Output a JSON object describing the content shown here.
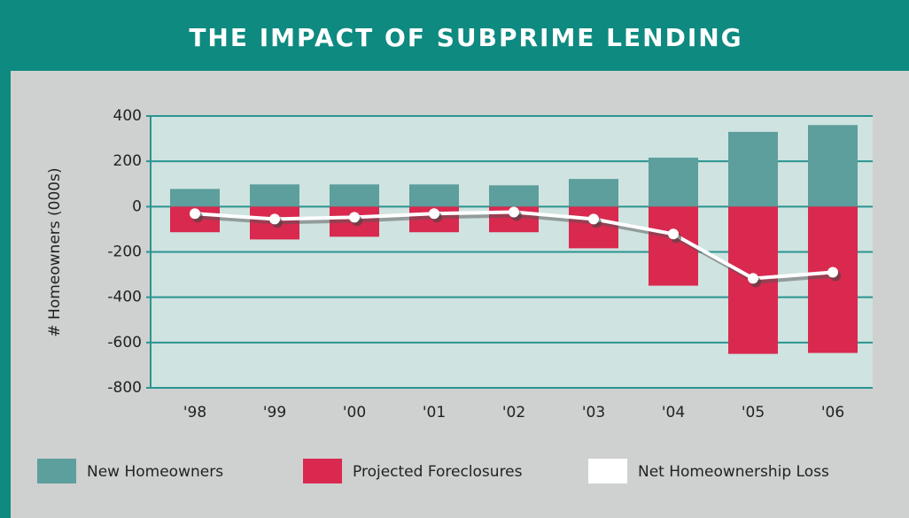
{
  "chart_data": {
    "type": "bar",
    "title": "THE IMPACT OF SUBPRIME LENDING",
    "y_label": "# Homeowners (000s)",
    "categories": [
      "'98",
      "'99",
      "'00",
      "'01",
      "'02",
      "'03",
      "'04",
      "'05",
      "'06"
    ],
    "series": [
      {
        "name": "New Homeowners",
        "color": "#5c9f9c",
        "type": "bar",
        "values": [
          78,
          98,
          98,
          98,
          94,
          122,
          216,
          330,
          360
        ]
      },
      {
        "name": "Projected Foreclosures",
        "color": "#d9294f",
        "type": "bar",
        "values": [
          -113,
          -145,
          -133,
          -113,
          -113,
          -184,
          -349,
          -650,
          -646
        ]
      },
      {
        "name": "Net Homeownership Loss",
        "color": "#ffffff",
        "type": "line",
        "values": [
          -31,
          -55,
          -47,
          -31,
          -24,
          -55,
          -121,
          -317,
          -290
        ]
      }
    ],
    "ylim": [
      -800,
      400
    ],
    "yticks": [
      -800,
      -600,
      -400,
      -200,
      0,
      200,
      400
    ],
    "grid": true
  }
}
